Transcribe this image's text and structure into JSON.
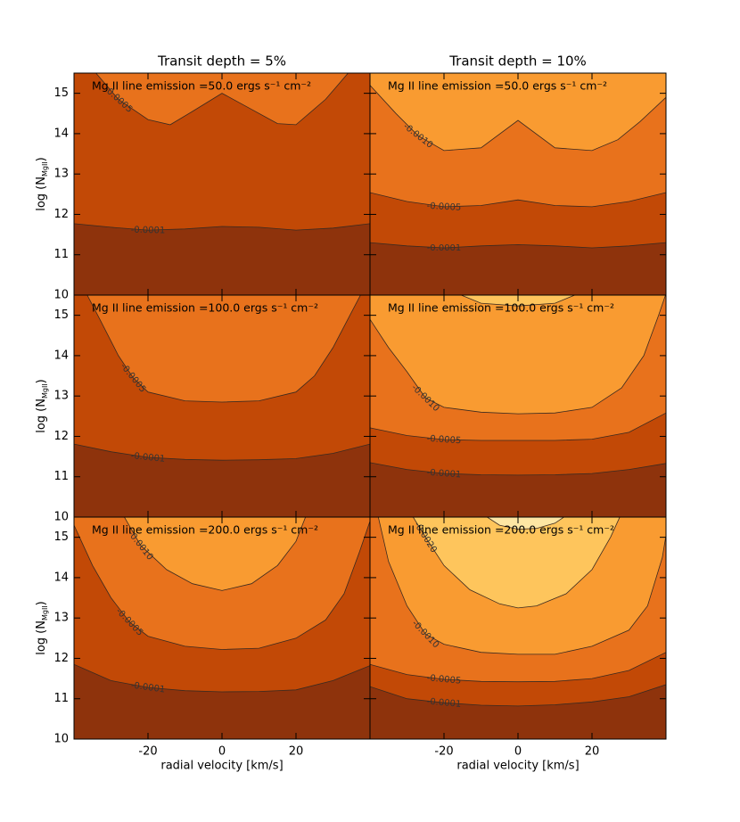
{
  "chart_data": [
    {
      "type": "contour",
      "title": "Transit depth = 5%",
      "annotation": "Mg II line emission =50.0 ergs s⁻¹ cm⁻²",
      "ylabel": {
        "text": "log (N",
        "sub": "MgII",
        "close": ")"
      },
      "xlim": [
        -40,
        40
      ],
      "ylim": [
        10,
        15.5
      ],
      "xticks": [
        -20,
        0,
        20
      ],
      "yticks": [
        10,
        11,
        12,
        13,
        14,
        15
      ],
      "background_color": "#8e330c",
      "contours": [
        {
          "level": -0.0001,
          "color": "#c24906",
          "x": [
            -40,
            -30,
            -20,
            -10,
            0,
            10,
            20,
            30,
            40
          ],
          "y": [
            11.77,
            11.68,
            11.61,
            11.64,
            11.7,
            11.68,
            11.61,
            11.66,
            11.77
          ]
        },
        {
          "level": -0.0005,
          "color": "#e8721c",
          "x": [
            -35,
            -28,
            -20,
            -14,
            -8,
            0,
            8,
            15,
            20,
            28,
            35
          ],
          "y": [
            15.6,
            14.85,
            14.35,
            14.22,
            14.55,
            15.0,
            14.6,
            14.25,
            14.22,
            14.85,
            15.6
          ]
        }
      ]
    },
    {
      "type": "contour",
      "title": "Transit depth = 10%",
      "annotation": "Mg II line emission =50.0 ergs s⁻¹ cm⁻²",
      "xlim": [
        -40,
        40
      ],
      "ylim": [
        10,
        15.5
      ],
      "xticks": [
        -20,
        0,
        20
      ],
      "yticks": [
        10,
        11,
        12,
        13,
        14,
        15
      ],
      "background_color": "#8e330c",
      "contours": [
        {
          "level": -0.0001,
          "color": "#c24906",
          "x": [
            -40,
            -30,
            -20,
            -10,
            0,
            10,
            20,
            30,
            40
          ],
          "y": [
            11.3,
            11.22,
            11.17,
            11.22,
            11.25,
            11.22,
            11.17,
            11.22,
            11.3
          ]
        },
        {
          "level": -0.0005,
          "color": "#e8721c",
          "x": [
            -40,
            -30,
            -20,
            -10,
            0,
            10,
            20,
            30,
            40
          ],
          "y": [
            12.54,
            12.32,
            12.19,
            12.22,
            12.36,
            12.22,
            12.19,
            12.32,
            12.54
          ]
        },
        {
          "level": {
            "value": -0.001,
            "label": "-0.0010"
          },
          "color": "#f99b31",
          "x": [
            -40,
            -33,
            -27,
            -20,
            -10,
            0,
            10,
            20,
            27,
            33,
            40
          ],
          "y": [
            15.2,
            14.5,
            13.95,
            13.58,
            13.65,
            14.33,
            13.65,
            13.58,
            13.85,
            14.3,
            14.9
          ]
        }
      ]
    },
    {
      "type": "contour",
      "annotation": "Mg II line emission =100.0 ergs s⁻¹ cm⁻²",
      "ylabel": {
        "text": "log (N",
        "sub": "MgII",
        "close": ")"
      },
      "xlim": [
        -40,
        40
      ],
      "ylim": [
        10,
        15.5
      ],
      "xticks": [
        -20,
        0,
        20
      ],
      "yticks": [
        10,
        11,
        12,
        13,
        14,
        15
      ],
      "background_color": "#8e330c",
      "contours": [
        {
          "level": -0.0001,
          "color": "#c24906",
          "x": [
            -40,
            -30,
            -20,
            -10,
            0,
            10,
            20,
            30,
            40
          ],
          "y": [
            11.81,
            11.62,
            11.48,
            11.43,
            11.41,
            11.42,
            11.45,
            11.58,
            11.81
          ]
        },
        {
          "level": -0.0005,
          "color": "#e8721c",
          "x": [
            -37,
            -33,
            -28,
            -24,
            -20,
            -10,
            0,
            10,
            20,
            25,
            30,
            34,
            38
          ],
          "y": [
            15.6,
            14.9,
            14.0,
            13.45,
            13.1,
            12.88,
            12.85,
            12.88,
            13.1,
            13.5,
            14.2,
            14.9,
            15.6
          ]
        }
      ]
    },
    {
      "type": "contour",
      "annotation": "Mg II line emission =100.0 ergs s⁻¹ cm⁻²",
      "xlim": [
        -40,
        40
      ],
      "ylim": [
        10,
        15.5
      ],
      "xticks": [
        -20,
        0,
        20
      ],
      "yticks": [
        10,
        11,
        12,
        13,
        14,
        15
      ],
      "background_color": "#8e330c",
      "contours": [
        {
          "level": -0.0001,
          "color": "#c24906",
          "x": [
            -40,
            -30,
            -20,
            -10,
            0,
            10,
            20,
            30,
            40
          ],
          "y": [
            11.35,
            11.18,
            11.08,
            11.05,
            11.04,
            11.05,
            11.08,
            11.18,
            11.33
          ]
        },
        {
          "level": -0.0005,
          "color": "#e8721c",
          "x": [
            -40,
            -30,
            -20,
            -10,
            0,
            10,
            20,
            30,
            40
          ],
          "y": [
            12.21,
            12.02,
            11.92,
            11.9,
            11.9,
            11.9,
            11.93,
            12.1,
            12.58
          ]
        },
        {
          "level": {
            "value": -0.001,
            "label": "-0.0010"
          },
          "color": "#f99b31",
          "x": [
            -40,
            -35,
            -30,
            -25,
            -20,
            -10,
            0,
            10,
            20,
            28,
            34,
            38,
            41
          ],
          "y": [
            14.9,
            14.2,
            13.6,
            12.95,
            12.72,
            12.6,
            12.56,
            12.58,
            12.72,
            13.2,
            14.0,
            15.0,
            15.8
          ]
        },
        {
          "level": {
            "value": -0.002,
            "label": "-0.0020"
          },
          "color": "#fec55c",
          "x": [
            -18,
            -10,
            0,
            10,
            18
          ],
          "y": [
            15.6,
            15.3,
            15.23,
            15.3,
            15.6
          ]
        }
      ]
    },
    {
      "type": "contour",
      "annotation": "Mg II line emission =200.0 ergs s⁻¹ cm⁻²",
      "xlabel": "radial velocity [km/s]",
      "ylabel": {
        "text": "log (N",
        "sub": "MgII",
        "close": ")"
      },
      "xlim": [
        -40,
        40
      ],
      "ylim": [
        10,
        15.5
      ],
      "xticks": [
        -20,
        0,
        20
      ],
      "yticks": [
        10,
        11,
        12,
        13,
        14,
        15
      ],
      "background_color": "#8e330c",
      "contours": [
        {
          "level": -0.0001,
          "color": "#c24906",
          "x": [
            -40,
            -30,
            -20,
            -10,
            0,
            10,
            20,
            30,
            40
          ],
          "y": [
            11.85,
            11.45,
            11.28,
            11.2,
            11.17,
            11.18,
            11.22,
            11.45,
            11.82
          ]
        },
        {
          "level": -0.0005,
          "color": "#e8721c",
          "x": [
            -40,
            -35,
            -30,
            -25,
            -20,
            -10,
            0,
            10,
            20,
            28,
            33,
            37,
            40
          ],
          "y": [
            15.3,
            14.3,
            13.5,
            12.9,
            12.55,
            12.3,
            12.22,
            12.25,
            12.5,
            12.95,
            13.6,
            14.6,
            15.4
          ]
        },
        {
          "level": {
            "value": -0.001,
            "label": "-0.0010"
          },
          "color": "#f99b31",
          "x": [
            -27,
            -22,
            -15,
            -8,
            0,
            8,
            15,
            20,
            23
          ],
          "y": [
            15.6,
            14.8,
            14.2,
            13.85,
            13.68,
            13.85,
            14.3,
            14.9,
            15.6
          ]
        }
      ]
    },
    {
      "type": "contour",
      "annotation": "Mg II line emission =200.0 ergs s⁻¹ cm⁻²",
      "xlabel": "radial velocity [km/s]",
      "xlim": [
        -40,
        40
      ],
      "ylim": [
        10,
        15.5
      ],
      "xticks": [
        -20,
        0,
        20
      ],
      "yticks": [
        10,
        11,
        12,
        13,
        14,
        15
      ],
      "background_color": "#8e330c",
      "contours": [
        {
          "level": -0.0001,
          "color": "#c24906",
          "x": [
            -40,
            -30,
            -20,
            -10,
            0,
            10,
            20,
            30,
            40
          ],
          "y": [
            11.3,
            11.0,
            10.9,
            10.84,
            10.82,
            10.85,
            10.92,
            11.05,
            11.35
          ]
        },
        {
          "level": -0.0005,
          "color": "#e8721c",
          "x": [
            -40,
            -30,
            -20,
            -10,
            0,
            10,
            20,
            30,
            40
          ],
          "y": [
            11.85,
            11.6,
            11.48,
            11.43,
            11.42,
            11.43,
            11.5,
            11.7,
            12.15
          ]
        },
        {
          "level": {
            "value": -0.001,
            "label": "-0.0010"
          },
          "color": "#f99b31",
          "x": [
            -38,
            -35,
            -30,
            -25,
            -20,
            -10,
            0,
            10,
            20,
            30,
            35,
            39,
            41
          ],
          "y": [
            15.6,
            14.4,
            13.3,
            12.6,
            12.35,
            12.15,
            12.1,
            12.1,
            12.3,
            12.7,
            13.3,
            14.5,
            15.6
          ]
        },
        {
          "level": {
            "value": -0.002,
            "label": "-0.0020"
          },
          "color": "#fec55c",
          "x": [
            -29,
            -25,
            -20,
            -13,
            -5,
            0,
            5,
            13,
            20,
            25,
            28
          ],
          "y": [
            15.6,
            15.0,
            14.3,
            13.7,
            13.35,
            13.25,
            13.3,
            13.6,
            14.2,
            15.0,
            15.6
          ]
        },
        {
          "color": "#fde6a4",
          "x": [
            -10,
            -5,
            0,
            5,
            10,
            14
          ],
          "y": [
            15.6,
            15.3,
            15.2,
            15.22,
            15.35,
            15.6
          ]
        }
      ]
    }
  ]
}
